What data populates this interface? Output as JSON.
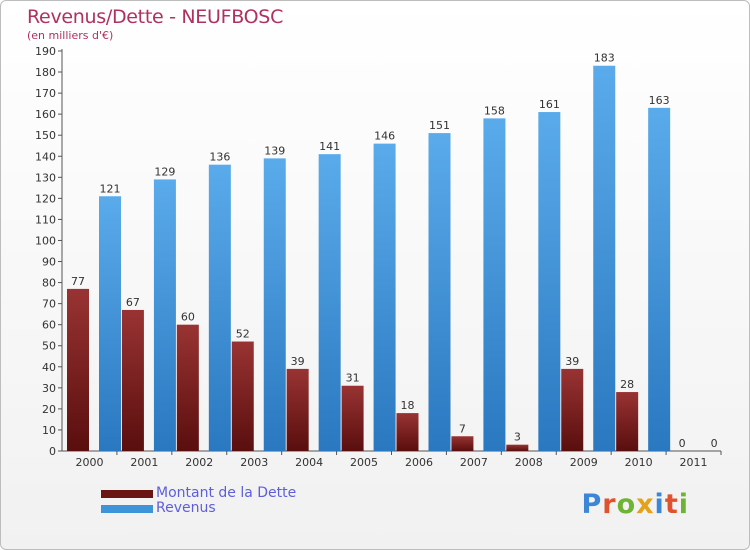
{
  "chart_data": {
    "type": "bar",
    "title": "Revenus/Dette - NEUFBOSC",
    "subtitle": "(en milliers d'€)",
    "categories": [
      "2000",
      "2001",
      "2002",
      "2003",
      "2004",
      "2005",
      "2006",
      "2007",
      "2008",
      "2009",
      "2010",
      "2011"
    ],
    "series": [
      {
        "name": "Montant de la Dette",
        "color": "#7a1c1c",
        "values": [
          77,
          67,
          60,
          52,
          39,
          31,
          18,
          7,
          3,
          39,
          28,
          0
        ]
      },
      {
        "name": "Revenus",
        "color": "#3d94d8",
        "values": [
          121,
          129,
          136,
          139,
          141,
          146,
          151,
          158,
          161,
          183,
          163,
          0
        ]
      }
    ],
    "ylim": [
      0,
      190
    ],
    "yticks": [
      0,
      10,
      20,
      30,
      40,
      50,
      60,
      70,
      80,
      90,
      100,
      110,
      120,
      130,
      140,
      150,
      160,
      170,
      180,
      190
    ],
    "grid": false,
    "legend_position": "bottom-left"
  },
  "logo": {
    "text": "Proxiti",
    "letter_colors": [
      "#3b86d6",
      "#e0522d",
      "#6fb334",
      "#e3a21a",
      "#3b86d6",
      "#e0522d",
      "#6fb334"
    ]
  }
}
